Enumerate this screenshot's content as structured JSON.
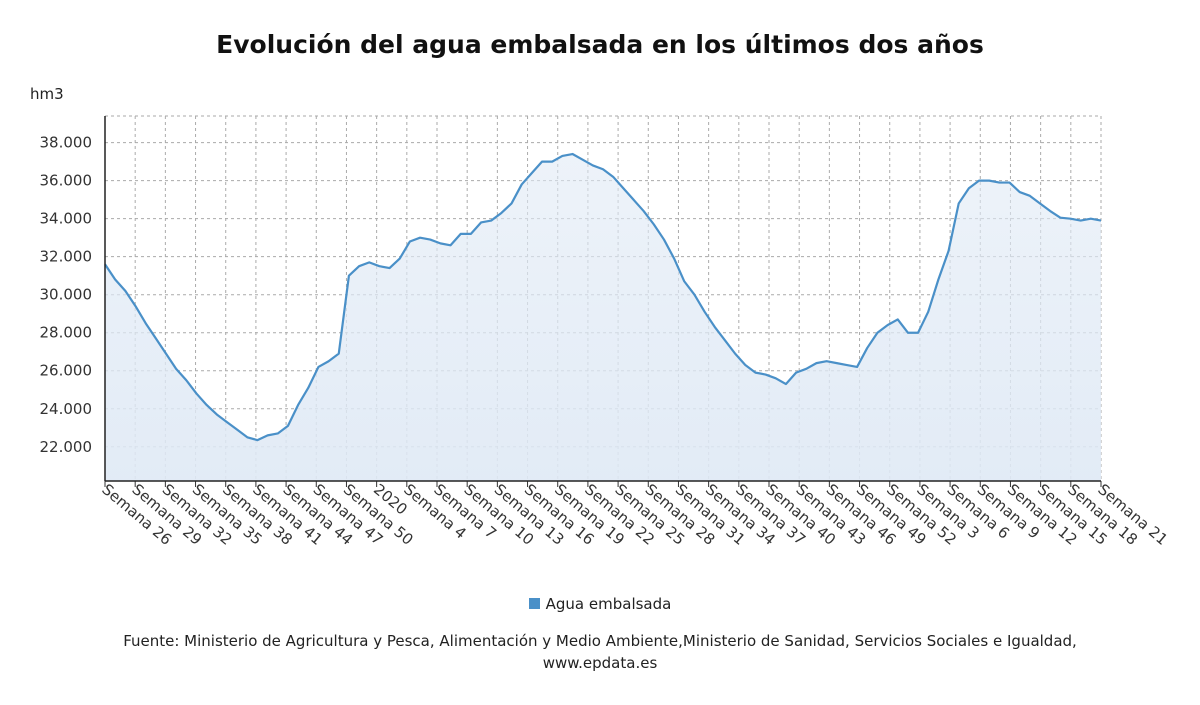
{
  "title": "Evolución del agua embalsada en los últimos dos años",
  "legend_label": "Agua embalsada",
  "source_line1": "Fuente: Ministerio de Agricultura y Pesca, Alimentación y Medio Ambiente,Ministerio de Sanidad, Servicios Sociales e Igualdad,",
  "source_line2": "www.epdata.es",
  "colors": {
    "line": "#4a90c8",
    "fill": "#dfe9f5",
    "grid": "#aaaaaa"
  },
  "chart_data": {
    "type": "area",
    "ylabel": "hm3",
    "ylim": [
      20200,
      39400
    ],
    "yticks": [
      22000,
      24000,
      26000,
      28000,
      30000,
      32000,
      34000,
      36000,
      38000
    ],
    "ytick_labels": [
      "22.000",
      "24.000",
      "26.000",
      "28.000",
      "30.000",
      "32.000",
      "34.000",
      "36.000",
      "38.000"
    ],
    "grid": true,
    "legend_position": "bottom",
    "x_tick_labels": [
      "Semana 26",
      "Semana 29",
      "Semana 32",
      "Semana 35",
      "Semana 38",
      "Semana 41",
      "Semana 44",
      "Semana 47",
      "Semana 50",
      "2020",
      "Semana 4",
      "Semana 7",
      "Semana 10",
      "Semana 13",
      "Semana 16",
      "Semana 19",
      "Semana 22",
      "Semana 25",
      "Semana 28",
      "Semana 31",
      "Semana 34",
      "Semana 37",
      "Semana 40",
      "Semana 43",
      "Semana 46",
      "Semana 49",
      "Semana 52",
      "Semana 3",
      "Semana 6",
      "Semana 9",
      "Semana 12",
      "Semana 15",
      "Semana 18",
      "Semana 21"
    ],
    "series": [
      {
        "name": "Agua embalsada",
        "values": [
          31600,
          30800,
          30200,
          29400,
          28500,
          27700,
          26900,
          26100,
          25500,
          24800,
          24200,
          23700,
          23300,
          22900,
          22500,
          22350,
          22600,
          22700,
          23100,
          24200,
          25100,
          26200,
          26500,
          26900,
          31000,
          31500,
          31700,
          31500,
          31400,
          31900,
          32800,
          33000,
          32900,
          32700,
          32600,
          33200,
          33200,
          33800,
          33900,
          34300,
          34800,
          35800,
          36400,
          37000,
          37000,
          37300,
          37400,
          37100,
          36800,
          36600,
          36200,
          35600,
          35000,
          34400,
          33700,
          32900,
          31900,
          30700,
          30000,
          29100,
          28300,
          27600,
          26900,
          26300,
          25900,
          25800,
          25600,
          25300,
          25900,
          26100,
          26400,
          26500,
          26400,
          26300,
          26200,
          27200,
          28000,
          28400,
          28700,
          28000,
          28000,
          29100,
          30800,
          32300,
          34800,
          35600,
          36000,
          36000,
          35900,
          35900,
          35400,
          35200,
          34800,
          34400,
          34050,
          34000,
          33900,
          34000,
          33900
        ]
      }
    ]
  }
}
